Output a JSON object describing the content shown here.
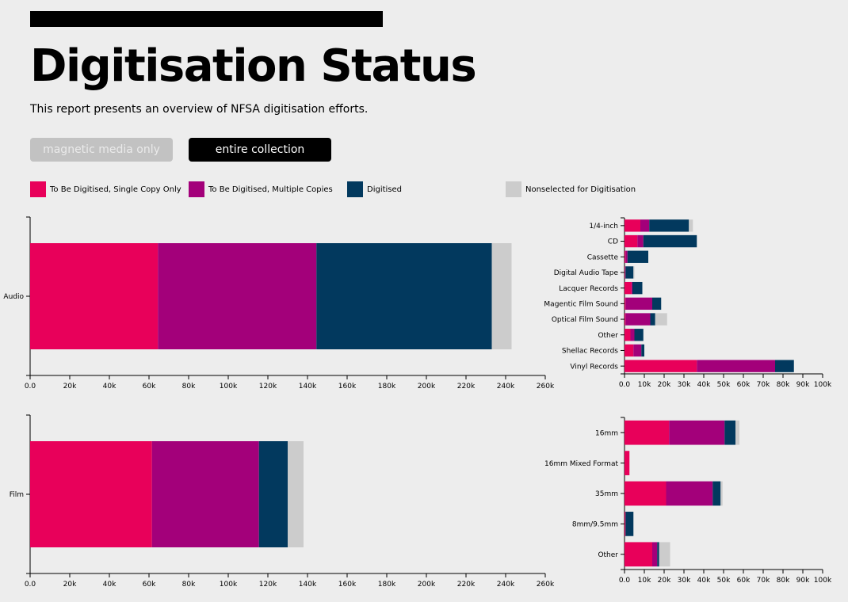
{
  "page": {
    "title": "Digitisation Status",
    "subtitle": "This report presents an overview of NFSA digitisation efforts."
  },
  "buttons": {
    "magnetic": "magnetic media only",
    "entire": "entire collection"
  },
  "legend": [
    {
      "label": "To Be Digitised, Single Copy Only",
      "color": "#e8005a"
    },
    {
      "label": "To Be Digitised, Multiple Copies",
      "color": "#a3007a"
    },
    {
      "label": "Digitised",
      "color": "#02395e"
    },
    {
      "label": "Nonselected for Digitisation",
      "color": "#cccccc"
    }
  ],
  "chart_data": [
    {
      "type": "bar",
      "orientation": "horizontal",
      "stacked": true,
      "categories": [
        "Audio"
      ],
      "series": [
        {
          "name": "To Be Digitised, Single Copy Only",
          "values": [
            64500
          ]
        },
        {
          "name": "To Be Digitised, Multiple Copies",
          "values": [
            80000
          ]
        },
        {
          "name": "Digitised",
          "values": [
            88500
          ]
        },
        {
          "name": "Nonselected for Digitisation",
          "values": [
            10000
          ]
        }
      ],
      "xlim": [
        0,
        260000
      ],
      "xticks": [
        "0.0",
        "20k",
        "40k",
        "60k",
        "80k",
        "100k",
        "120k",
        "140k",
        "160k",
        "180k",
        "200k",
        "220k",
        "240k",
        "260k"
      ]
    },
    {
      "type": "bar",
      "orientation": "horizontal",
      "stacked": true,
      "categories": [
        "1/4-inch",
        "CD",
        "Cassette",
        "Digital Audio Tape",
        "Lacquer Records",
        "Magentic Film Sound",
        "Optical Film Sound",
        "Other",
        "Shellac Records",
        "Vinyl Records"
      ],
      "series": [
        {
          "name": "To Be Digitised, Single Copy Only",
          "values": [
            8000,
            6500,
            500,
            300,
            3500,
            500,
            500,
            3000,
            4500,
            36500
          ]
        },
        {
          "name": "To Be Digitised, Multiple Copies",
          "values": [
            4500,
            3000,
            1000,
            200,
            500,
            13500,
            12500,
            2000,
            4000,
            39500
          ]
        },
        {
          "name": "Digitised",
          "values": [
            20000,
            27000,
            10500,
            4000,
            5000,
            4500,
            2500,
            4500,
            1500,
            9500
          ]
        },
        {
          "name": "Nonselected for Digitisation",
          "values": [
            2000,
            0,
            0,
            500,
            0,
            0,
            6000,
            0,
            0,
            0
          ]
        }
      ],
      "xlim": [
        0,
        100000
      ],
      "xticks": [
        "0.0",
        "10k",
        "20k",
        "30k",
        "40k",
        "50k",
        "60k",
        "70k",
        "80k",
        "90k",
        "100k"
      ]
    },
    {
      "type": "bar",
      "orientation": "horizontal",
      "stacked": true,
      "categories": [
        "Film"
      ],
      "series": [
        {
          "name": "To Be Digitised, Single Copy Only",
          "values": [
            61500
          ]
        },
        {
          "name": "To Be Digitised, Multiple Copies",
          "values": [
            54000
          ]
        },
        {
          "name": "Digitised",
          "values": [
            14500
          ]
        },
        {
          "name": "Nonselected for Digitisation",
          "values": [
            8000
          ]
        }
      ],
      "xlim": [
        0,
        260000
      ],
      "xticks": [
        "0.0",
        "20k",
        "40k",
        "60k",
        "80k",
        "100k",
        "120k",
        "140k",
        "160k",
        "180k",
        "200k",
        "220k",
        "240k",
        "260k"
      ]
    },
    {
      "type": "bar",
      "orientation": "horizontal",
      "stacked": true,
      "categories": [
        "16mm",
        "16mm Mixed Format",
        "35mm",
        "8mm/9.5mm",
        "Other"
      ],
      "series": [
        {
          "name": "To Be Digitised, Single Copy Only",
          "values": [
            22500,
            2500,
            21000,
            500,
            14000
          ]
        },
        {
          "name": "To Be Digitised, Multiple Copies",
          "values": [
            28000,
            0,
            23500,
            0,
            2500
          ]
        },
        {
          "name": "Digitised",
          "values": [
            5500,
            0,
            4000,
            4000,
            1000
          ]
        },
        {
          "name": "Nonselected for Digitisation",
          "values": [
            2000,
            0,
            1000,
            0,
            5500
          ]
        }
      ],
      "xlim": [
        0,
        100000
      ],
      "xticks": [
        "0.0",
        "10k",
        "20k",
        "30k",
        "40k",
        "50k",
        "60k",
        "70k",
        "80k",
        "90k",
        "100k"
      ]
    }
  ]
}
